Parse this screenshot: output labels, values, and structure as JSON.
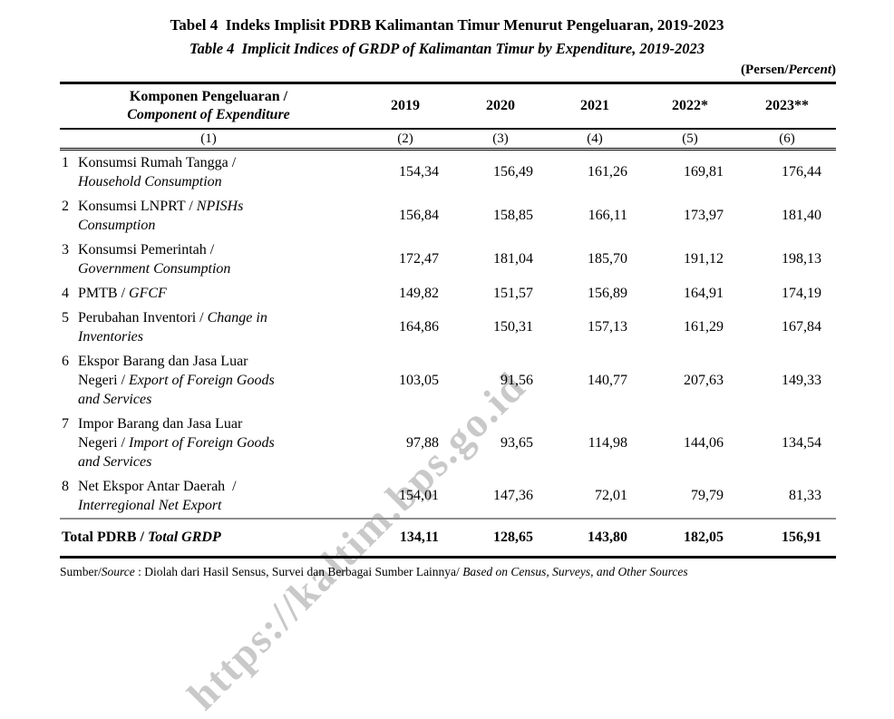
{
  "page": {
    "title_line1": "Tabel 4  Indeks Implisit PDRB Kalimantan Timur Menurut Pengeluaran, 2019-2023",
    "title_line2": "Table 4  Implicit Indices of GRDP of Kalimantan Timur by Expenditure, 2019-2023",
    "unit_segments": [
      {
        "t": "(Persen/",
        "i": false
      },
      {
        "t": "Percent",
        "i": true
      },
      {
        "t": ")",
        "i": false
      }
    ]
  },
  "watermark": {
    "text": "https://kaltim.bps.go.id",
    "color": "#c9c9c9"
  },
  "table": {
    "header": {
      "component_line1": [
        {
          "t": "Komponen Pengeluaran /",
          "i": false
        }
      ],
      "component_line2": [
        {
          "t": "Component of Expenditure",
          "i": true
        }
      ],
      "years": [
        "2019",
        "2020",
        "2021",
        "2022*",
        "2023**"
      ],
      "col_numbers": [
        "(1)",
        "(2)",
        "(3)",
        "(4)",
        "(5)",
        "(6)"
      ]
    },
    "rows": [
      {
        "no": "1",
        "lines": [
          [
            {
              "t": "Konsumsi Rumah Tangga /",
              "i": false
            }
          ],
          [
            {
              "t": "Household Consumption",
              "i": true
            }
          ]
        ],
        "values": [
          "154,34",
          "156,49",
          "161,26",
          "169,81",
          "176,44"
        ]
      },
      {
        "no": "2",
        "lines": [
          [
            {
              "t": "Konsumsi LNPRT / ",
              "i": false
            },
            {
              "t": "NPISHs",
              "i": true
            }
          ],
          [
            {
              "t": "Consumption",
              "i": true
            }
          ]
        ],
        "values": [
          "156,84",
          "158,85",
          "166,11",
          "173,97",
          "181,40"
        ]
      },
      {
        "no": "3",
        "lines": [
          [
            {
              "t": "Konsumsi Pemerintah /",
              "i": false
            }
          ],
          [
            {
              "t": "Government Consumption",
              "i": true
            }
          ]
        ],
        "values": [
          "172,47",
          "181,04",
          "185,70",
          "191,12",
          "198,13"
        ]
      },
      {
        "no": "4",
        "lines": [
          [
            {
              "t": "PMTB / ",
              "i": false
            },
            {
              "t": "GFCF",
              "i": true
            }
          ]
        ],
        "values": [
          "149,82",
          "151,57",
          "156,89",
          "164,91",
          "174,19"
        ]
      },
      {
        "no": "5",
        "lines": [
          [
            {
              "t": "Perubahan Inventori / ",
              "i": false
            },
            {
              "t": "Change in",
              "i": true
            }
          ],
          [
            {
              "t": "Inventories",
              "i": true
            }
          ]
        ],
        "values": [
          "164,86",
          "150,31",
          "157,13",
          "161,29",
          "167,84"
        ]
      },
      {
        "no": "6",
        "lines": [
          [
            {
              "t": "Ekspor Barang dan Jasa Luar",
              "i": false
            }
          ],
          [
            {
              "t": "Negeri / ",
              "i": false
            },
            {
              "t": "Export of Foreign Goods",
              "i": true
            }
          ],
          [
            {
              "t": "and Services",
              "i": true
            }
          ]
        ],
        "values": [
          "103,05",
          "91,56",
          "140,77",
          "207,63",
          "149,33"
        ]
      },
      {
        "no": "7",
        "lines": [
          [
            {
              "t": "Impor Barang dan Jasa Luar",
              "i": false
            }
          ],
          [
            {
              "t": "Negeri / ",
              "i": false
            },
            {
              "t": "Import of Foreign Goods",
              "i": true
            }
          ],
          [
            {
              "t": "and Services",
              "i": true
            }
          ]
        ],
        "values": [
          "97,88",
          "93,65",
          "114,98",
          "144,06",
          "134,54"
        ]
      },
      {
        "no": "8",
        "lines": [
          [
            {
              "t": "Net Ekspor Antar Daerah  /",
              "i": false
            }
          ],
          [
            {
              "t": "Interregional Net Export",
              "i": true
            }
          ]
        ],
        "values": [
          "154,01",
          "147,36",
          "72,01",
          "79,79",
          "81,33"
        ]
      }
    ],
    "total": {
      "label_segments": [
        {
          "t": "Total PDRB / ",
          "i": false
        },
        {
          "t": "Total GRDP",
          "i": true
        }
      ],
      "values": [
        "134,11",
        "128,65",
        "143,80",
        "182,05",
        "156,91"
      ]
    }
  },
  "source_segments": [
    {
      "t": "Sumber/",
      "i": false
    },
    {
      "t": "Source",
      "i": true
    },
    {
      "t": " : Diolah dari Hasil Sensus, Survei dan Berbagai Sumber Lainnya/ ",
      "i": false
    },
    {
      "t": "Based on Census, Surveys, and Other Sources",
      "i": true
    }
  ]
}
